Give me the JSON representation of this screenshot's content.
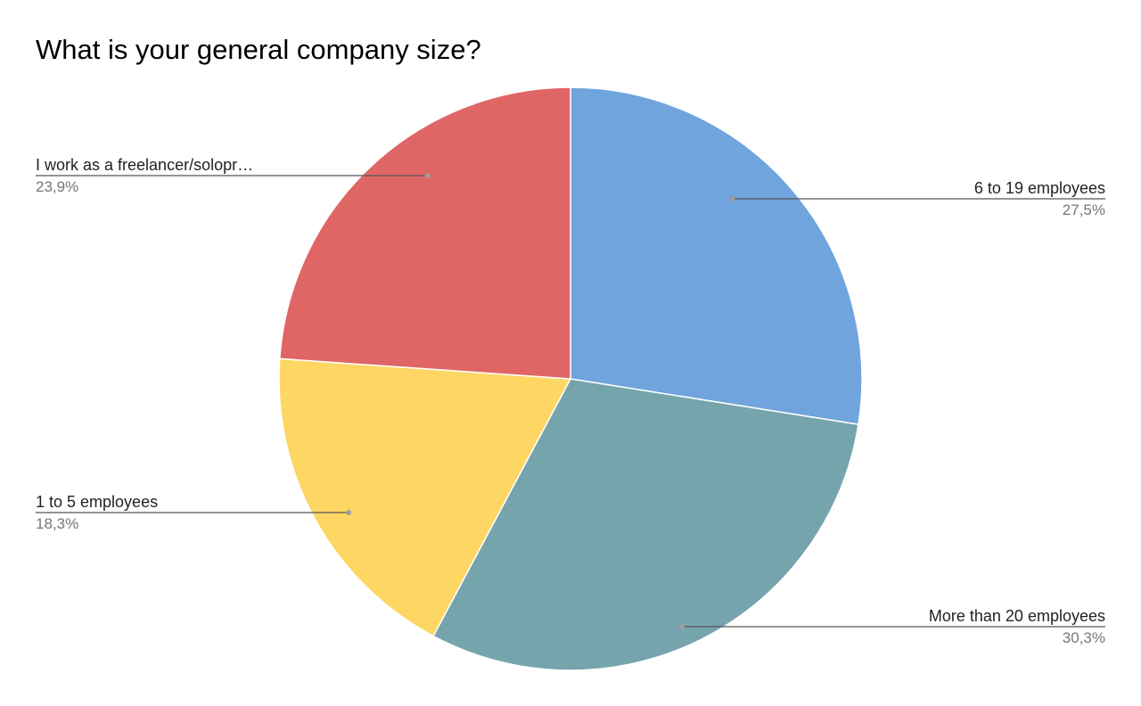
{
  "chart_data": {
    "type": "pie",
    "title": "What is your general company size?",
    "slices": [
      {
        "label": "6 to 19 employees",
        "value": 27.5,
        "percent_label": "27,5%",
        "color": "#6fa4dc"
      },
      {
        "label": "More than 20 employees",
        "value": 30.3,
        "percent_label": "30,3%",
        "color": "#76a4ad"
      },
      {
        "label": "1 to 5 employees",
        "value": 18.3,
        "percent_label": "18,3%",
        "color": "#fdd663"
      },
      {
        "label": "I work as a freelancer/solopr…",
        "value": 23.9,
        "percent_label": "23,9%",
        "color": "#e06666"
      }
    ],
    "start_angle": "12 o'clock",
    "direction": "clockwise",
    "legend": "none",
    "labels": "outside with leader lines"
  }
}
